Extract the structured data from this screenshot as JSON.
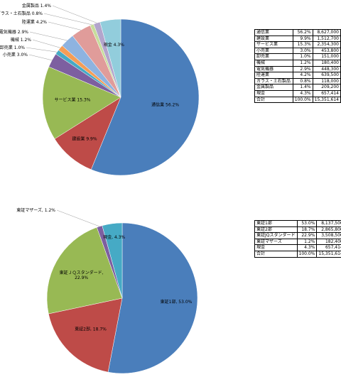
{
  "chart_data": [
    {
      "type": "pie",
      "title": "",
      "categories": [
        "通信業",
        "建設業",
        "サービス業",
        "小売業",
        "卸売業",
        "機械",
        "電気機器",
        "陸運業",
        "ガラス・土石製品",
        "金属製品",
        "現金"
      ],
      "values": [
        8627000,
        1512700,
        2354300,
        453800,
        151000,
        180400,
        448300,
        639500,
        118000,
        209200,
        657414
      ],
      "percents": [
        "56.2%",
        "9.9%",
        "15.3%",
        "3.0%",
        "1.0%",
        "1.2%",
        "2.9%",
        "4.2%",
        "0.8%",
        "1.4%",
        "4.3%"
      ],
      "colors": [
        "#4a7ebb",
        "#be4b48",
        "#98b954",
        "#7d5fa0",
        "#46aac5",
        "#f59d56",
        "#8eb3e0",
        "#e09c9a",
        "#c7dd9c",
        "#b3a5cc",
        "#92cddc"
      ],
      "slice_labels": [
        "通信業 56.2%",
        "建設業 9.9%",
        "サービス業 15.3%",
        "小売業 3.0%",
        "卸売業 1.0%",
        "機械 1.2%",
        "電気機器 2.9%",
        "陸運業 4.2%",
        "ガラス・土石製品 0.8%",
        "金属製品 1.4%",
        "現金 4.3%"
      ],
      "label_placement": [
        "inside",
        "inside",
        "inside",
        "outside",
        "outside",
        "outside",
        "outside",
        "outside",
        "outside",
        "outside",
        "inside"
      ]
    },
    {
      "type": "pie",
      "title": "",
      "categories": [
        "東証1部",
        "東証2部",
        "東証JQスタンダード",
        "東証マザーズ",
        "現金"
      ],
      "values": [
        8137500,
        2865800,
        3508500,
        182400,
        657414
      ],
      "percents": [
        "53.0%",
        "18.7%",
        "22.9%",
        "1.2%",
        "4.3%"
      ],
      "colors": [
        "#4a7ebb",
        "#be4b48",
        "#98b954",
        "#7d5fa0",
        "#46aac5"
      ],
      "slice_labels": [
        "東証1部, 53.0%",
        "東証2部, 18.7%",
        "東証ＪＱスタンダード, 22.9%",
        "東証マザーズ, 1.2%",
        "現金, 4.3%"
      ],
      "label_placement": [
        "inside",
        "inside",
        "inside",
        "outside",
        "inside"
      ]
    }
  ],
  "table1": {
    "rows": [
      {
        "name": "通信業",
        "pct": "56.2%",
        "amount": "8,627,000"
      },
      {
        "name": "建設業",
        "pct": "9.9%",
        "amount": "1,512,700"
      },
      {
        "name": "サービス業",
        "pct": "15.3%",
        "amount": "2,354,300"
      },
      {
        "name": "小売業",
        "pct": "3.0%",
        "amount": "453,800"
      },
      {
        "name": "卸売業",
        "pct": "1.0%",
        "amount": "151,000"
      },
      {
        "name": "機械",
        "pct": "1.2%",
        "amount": "180,400"
      },
      {
        "name": "電気機器",
        "pct": "2.9%",
        "amount": "448,300"
      },
      {
        "name": "陸運業",
        "pct": "4.2%",
        "amount": "639,500"
      },
      {
        "name": "ガラス・土石製品",
        "pct": "0.8%",
        "amount": "118,000"
      },
      {
        "name": "金属製品",
        "pct": "1.4%",
        "amount": "209,200"
      },
      {
        "name": "現金",
        "pct": "4.3%",
        "amount": "657,414"
      },
      {
        "name": "合計",
        "pct": "100.0%",
        "amount": "15,351,614"
      }
    ]
  },
  "table2": {
    "rows": [
      {
        "name": "東証1部",
        "pct": "53.0%",
        "amount": "8,137,500"
      },
      {
        "name": "東証2部",
        "pct": "18.7%",
        "amount": "2,865,800"
      },
      {
        "name": "東証JQスタンダード",
        "pct": "22.9%",
        "amount": "3,508,500"
      },
      {
        "name": "東証マザーズ",
        "pct": "1.2%",
        "amount": "182,400"
      },
      {
        "name": "現金",
        "pct": "4.3%",
        "amount": "657,414"
      },
      {
        "name": "合計",
        "pct": "100.0%",
        "amount": "15,351,614"
      }
    ]
  }
}
